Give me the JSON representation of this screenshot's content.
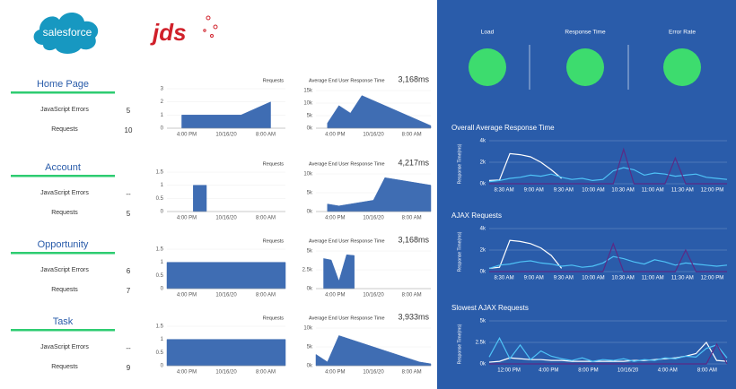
{
  "logos": [
    "salesforce",
    "jds"
  ],
  "sections": [
    {
      "title": "Home Page",
      "metrics": [
        {
          "label": "JavaScript Errors",
          "value": 5
        },
        {
          "label": "Requests",
          "value": 10
        }
      ],
      "requests_chart": {
        "type": "area",
        "title": "Requests",
        "ylim": [
          0,
          3
        ],
        "yticks": [
          0,
          1,
          2,
          3
        ],
        "xlabels": [
          "4:00 PM",
          "10/16/20",
          "8:00 AM"
        ],
        "series": [
          {
            "color": "#3f6db3",
            "values": [
              null,
              1,
              1,
              1,
              1,
              1,
              1.5,
              2,
              null
            ]
          }
        ]
      },
      "response_chart": {
        "type": "area",
        "title": "Average End User Response Time",
        "value_label": "3,168ms",
        "ylim": [
          0,
          15000
        ],
        "yticks": [
          {
            "value": 0,
            "label": "0k"
          },
          {
            "value": 5000,
            "label": "5k"
          },
          {
            "value": 10000,
            "label": "10k"
          },
          {
            "value": 15000,
            "label": "15k"
          }
        ],
        "xlabels": [
          "4:00 PM",
          "10/16/20",
          "8:00 AM"
        ],
        "series": [
          {
            "color": "#3f6db3",
            "values": [
              null,
              2000,
              9000,
              6000,
              13000,
              11000,
              9000,
              7000,
              5000,
              3000,
              1000
            ]
          }
        ]
      }
    },
    {
      "title": "Account",
      "metrics": [
        {
          "label": "JavaScript Errors",
          "value": "--"
        },
        {
          "label": "Requests",
          "value": 5
        }
      ],
      "requests_chart": {
        "type": "area",
        "title": "Requests",
        "ylim": [
          0,
          1.5
        ],
        "yticks": [
          0,
          0.5,
          1,
          1.5
        ],
        "xlabels": [
          "4:00 PM",
          "10/16/20",
          "8:00 AM"
        ],
        "series": [
          {
            "color": "#3f6db3",
            "values": [
              null,
              null,
              1,
              1,
              null,
              null,
              null,
              null,
              null,
              null
            ]
          }
        ]
      },
      "response_chart": {
        "type": "area",
        "title": "Average End User Response Time",
        "value_label": "4,217ms",
        "ylim": [
          0,
          10000
        ],
        "yticks": [
          {
            "value": 0,
            "label": "0k"
          },
          {
            "value": 5000,
            "label": "5k"
          },
          {
            "value": 10000,
            "label": "10k"
          }
        ],
        "xlabels": [
          "4:00 PM",
          "10/16/20",
          "8:00 AM"
        ],
        "series": [
          {
            "color": "#3f6db3",
            "values": [
              null,
              2000,
              1500,
              2000,
              2500,
              3000,
              9000,
              8500,
              8000,
              7500,
              7000
            ]
          }
        ]
      }
    },
    {
      "title": "Opportunity",
      "metrics": [
        {
          "label": "JavaScript Errors",
          "value": 6
        },
        {
          "label": "Requests",
          "value": 7
        }
      ],
      "requests_chart": {
        "type": "area",
        "title": "Requests",
        "ylim": [
          0,
          1.5
        ],
        "yticks": [
          0,
          0.5,
          1,
          1.5
        ],
        "xlabels": [
          "4:00 PM",
          "10/16/20",
          "8:00 AM"
        ],
        "series": [
          {
            "color": "#3f6db3",
            "values": [
              1,
              1,
              1,
              1,
              1
            ]
          }
        ]
      },
      "response_chart": {
        "type": "area",
        "title": "Average End User Response Time",
        "value_label": "3,168ms",
        "ylim": [
          0,
          5000
        ],
        "yticks": [
          {
            "value": 0,
            "label": "0k"
          },
          {
            "value": 2500,
            "label": "2.5k"
          },
          {
            "value": 5000,
            "label": "5k"
          }
        ],
        "xlabels": [
          "4:00 PM",
          "10/16/20",
          "8:00 AM"
        ],
        "series": [
          {
            "color": "#3f6db3",
            "values": [
              null,
              4000,
              3800,
              1000,
              4500,
              4400,
              null,
              null,
              null,
              null,
              null,
              null,
              null,
              null,
              null,
              null
            ]
          }
        ]
      }
    },
    {
      "title": "Task",
      "metrics": [
        {
          "label": "JavaScript Errors",
          "value": "--"
        },
        {
          "label": "Requests",
          "value": 9
        }
      ],
      "requests_chart": {
        "type": "area",
        "title": "Requests",
        "ylim": [
          0,
          1.5
        ],
        "yticks": [
          0,
          0.5,
          1,
          1.5
        ],
        "xlabels": [
          "4:00 PM",
          "10/16/20",
          "8:00 AM"
        ],
        "series": [
          {
            "color": "#3f6db3",
            "values": [
              1,
              1,
              1,
              1,
              1
            ]
          }
        ]
      },
      "response_chart": {
        "type": "area",
        "title": "Average End User Response Time",
        "value_label": "3,933ms",
        "ylim": [
          0,
          10000
        ],
        "yticks": [
          {
            "value": 0,
            "label": "0k"
          },
          {
            "value": 5000,
            "label": "5k"
          },
          {
            "value": 10000,
            "label": "10k"
          }
        ],
        "xlabels": [
          "4:00 PM",
          "10/16/20",
          "8:00 AM"
        ],
        "series": [
          {
            "color": "#3f6db3",
            "values": [
              3000,
              1000,
              8000,
              7000,
              6000,
              5000,
              4000,
              3000,
              2000,
              1000,
              500
            ]
          }
        ]
      }
    }
  ],
  "indicators": [
    "Load",
    "Response Time",
    "Error Rate"
  ],
  "charts": [
    {
      "type": "line",
      "title": "Overall Average Response Time",
      "ylabel": "Response Time(ms)",
      "ylim": [
        0,
        4000
      ],
      "yticks": [
        {
          "value": 0,
          "label": "0k"
        },
        {
          "value": 2000,
          "label": "2k"
        },
        {
          "value": 4000,
          "label": "4k"
        }
      ],
      "xlabels": [
        "8:30 AM",
        "9:00 AM",
        "9:30 AM",
        "10:00 AM",
        "10:30 AM",
        "11:00 AM",
        "11:30 AM",
        "12:00 PM"
      ],
      "series": [
        {
          "color": "#ffffff",
          "values": [
            300,
            350,
            2800,
            2700,
            2500,
            2000,
            1300,
            500,
            null,
            null,
            null,
            null,
            null,
            null,
            null,
            null,
            null,
            null,
            null,
            null,
            null,
            null,
            null,
            null
          ]
        },
        {
          "color": "#4fc3f7",
          "values": [
            200,
            300,
            500,
            600,
            800,
            700,
            900,
            600,
            400,
            500,
            300,
            400,
            1200,
            1500,
            1300,
            800,
            1000,
            900,
            700,
            800,
            900,
            600,
            500,
            400
          ]
        },
        {
          "color": "#5b2a86",
          "values": [
            0,
            0,
            0,
            0,
            0,
            0,
            0,
            0,
            0,
            0,
            0,
            0,
            0,
            3200,
            0,
            0,
            0,
            0,
            2400,
            0,
            0,
            0,
            0,
            0
          ]
        }
      ]
    },
    {
      "type": "line",
      "title": "AJAX Requests",
      "ylabel": "Response Time(ms)",
      "ylim": [
        0,
        4000
      ],
      "yticks": [
        {
          "value": 0,
          "label": "0k"
        },
        {
          "value": 2000,
          "label": "2k"
        },
        {
          "value": 4000,
          "label": "4k"
        }
      ],
      "xlabels": [
        "8:30 AM",
        "9:00 AM",
        "9:30 AM",
        "10:00 AM",
        "10:30 AM",
        "11:00 AM",
        "11:30 AM",
        "12:00 PM"
      ],
      "series": [
        {
          "color": "#ffffff",
          "values": [
            300,
            400,
            2900,
            2800,
            2600,
            2200,
            1500,
            300,
            null,
            null,
            null,
            null,
            null,
            null,
            null,
            null,
            null,
            null,
            null,
            null,
            null,
            null,
            null,
            null
          ]
        },
        {
          "color": "#4fc3f7",
          "values": [
            300,
            600,
            700,
            900,
            1000,
            800,
            700,
            500,
            600,
            400,
            500,
            800,
            1400,
            1200,
            900,
            700,
            1100,
            900,
            600,
            800,
            700,
            600,
            500,
            600
          ]
        },
        {
          "color": "#5b2a86",
          "values": [
            0,
            0,
            0,
            0,
            0,
            0,
            0,
            0,
            0,
            0,
            0,
            0,
            2600,
            0,
            0,
            0,
            0,
            0,
            0,
            2000,
            0,
            0,
            0,
            0
          ]
        }
      ]
    },
    {
      "type": "line",
      "title": "Slowest AJAX Requests",
      "ylabel": "Response Time(ms)",
      "ylim": [
        0,
        5000
      ],
      "yticks": [
        {
          "value": 0,
          "label": "0k"
        },
        {
          "value": 2500,
          "label": "2.5k"
        },
        {
          "value": 5000,
          "label": "5k"
        }
      ],
      "xlabels": [
        "12:00 PM",
        "4:00 PM",
        "8:00 PM",
        "10/16/20",
        "4:00 AM",
        "8:00 AM"
      ],
      "series": [
        {
          "color": "#ffffff",
          "values": [
            200,
            300,
            700,
            600,
            500,
            500,
            400,
            400,
            300,
            300,
            300,
            300,
            300,
            300,
            400,
            400,
            500,
            600,
            700,
            900,
            1200,
            2500,
            400,
            300
          ]
        },
        {
          "color": "#4fc3f7",
          "values": [
            800,
            3000,
            600,
            2200,
            500,
            1500,
            900,
            600,
            400,
            700,
            300,
            500,
            400,
            600,
            300,
            500,
            400,
            700,
            600,
            900,
            800,
            1800,
            2200,
            700
          ]
        },
        {
          "color": "#5b2a86",
          "values": [
            0,
            0,
            0,
            0,
            0,
            0,
            0,
            0,
            0,
            0,
            0,
            0,
            0,
            0,
            0,
            0,
            0,
            0,
            0,
            0,
            0,
            0,
            2300,
            0
          ]
        }
      ]
    }
  ]
}
